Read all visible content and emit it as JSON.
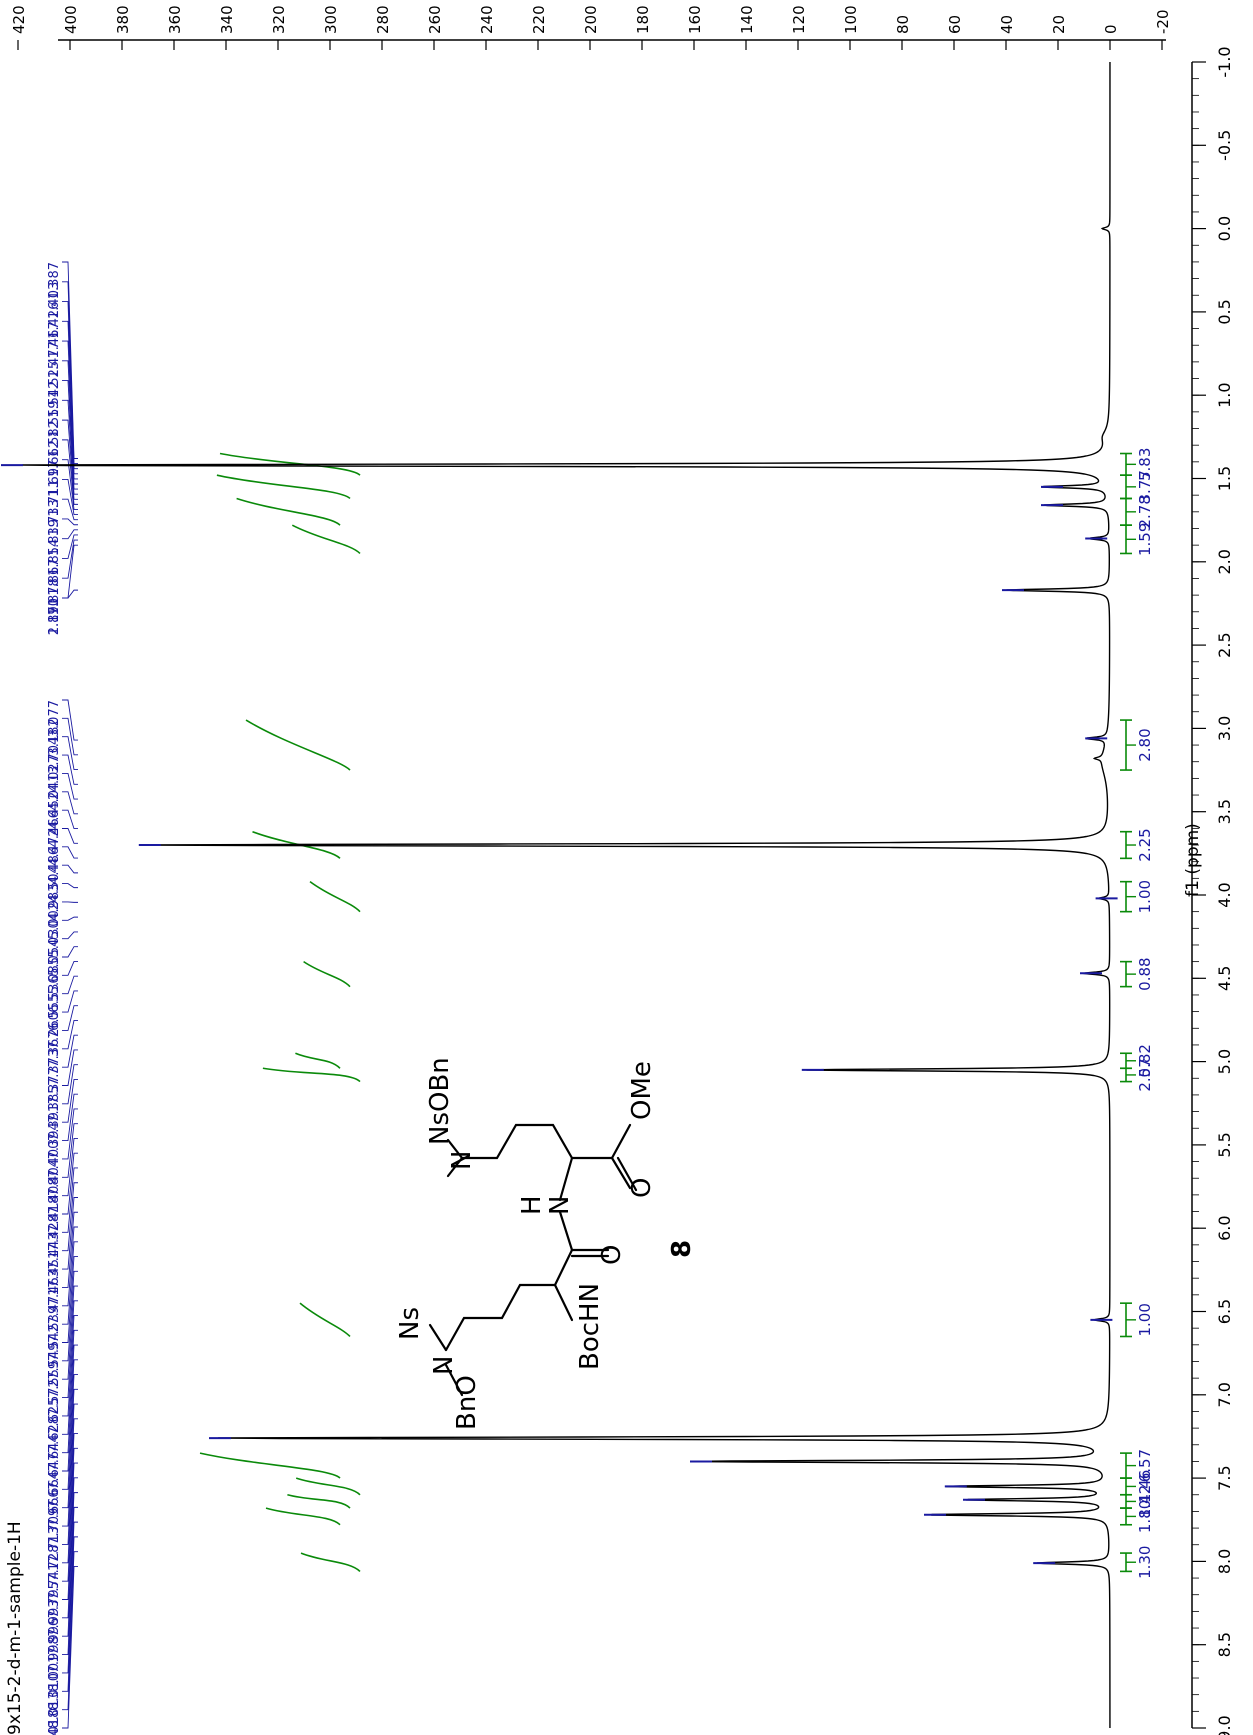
{
  "figure_label": "9x15-2-d-m-1-sample-1H",
  "compound_number": "8",
  "structure_labels": {
    "ns_top": "Ns",
    "n_top": "N",
    "obn": "OBn",
    "nh": "N",
    "h": "H",
    "o_amide": "O",
    "ome": "OMe",
    "o_ester": "O",
    "ns_left": "Ns",
    "n_left": "N",
    "bno": "BnO",
    "bochn": "BocHN"
  },
  "colors": {
    "spectrum": "#000000",
    "peak_labels": "#1a1aa0",
    "integrals": "#0a8a0a",
    "axis": "#000000"
  },
  "chart_data": {
    "type": "line",
    "orientation": "rotated-90",
    "title": "",
    "xlabel": "f1 (ppm)",
    "ylabel": "",
    "xlim": [
      -1.0,
      9.0
    ],
    "ylim": [
      -20,
      420
    ],
    "x_ticks": [
      "-1.0",
      "-0.5",
      "0.0",
      "0.5",
      "1.0",
      "1.5",
      "2.0",
      "2.5",
      "3.0",
      "3.5",
      "4.0",
      "4.5",
      "5.0",
      "5.5",
      "6.0",
      "6.5",
      "7.0",
      "7.5",
      "8.0",
      "8.5",
      "9.0"
    ],
    "y_ticks": [
      "-20",
      "0",
      "20",
      "40",
      "60",
      "80",
      "100",
      "120",
      "140",
      "160",
      "180",
      "200",
      "220",
      "240",
      "260",
      "280",
      "300",
      "320",
      "340",
      "360",
      "380",
      "400",
      "420"
    ],
    "peaks": [
      {
        "ppm": 0.0,
        "height": 3
      },
      {
        "ppm": 1.42,
        "height": 425
      },
      {
        "ppm": 1.55,
        "height": 25
      },
      {
        "ppm": 1.66,
        "height": 25
      },
      {
        "ppm": 1.86,
        "height": 8
      },
      {
        "ppm": 2.17,
        "height": 40
      },
      {
        "ppm": 3.06,
        "height": 8
      },
      {
        "ppm": 3.18,
        "height": 3
      },
      {
        "ppm": 3.7,
        "height": 372
      },
      {
        "ppm": 4.02,
        "height": 4
      },
      {
        "ppm": 4.47,
        "height": 10
      },
      {
        "ppm": 5.05,
        "height": 117
      },
      {
        "ppm": 6.55,
        "height": 6
      },
      {
        "ppm": 7.26,
        "height": 345
      },
      {
        "ppm": 7.4,
        "height": 160
      },
      {
        "ppm": 7.55,
        "height": 62
      },
      {
        "ppm": 7.63,
        "height": 55
      },
      {
        "ppm": 7.72,
        "height": 70
      },
      {
        "ppm": 8.01,
        "height": 28
      }
    ],
    "peak_labels": {
      "group1": [
        "1.387",
        "1.403",
        "1.426",
        "1.467",
        "1.477",
        "1.525",
        "1.542",
        "1.559",
        "1.582",
        "1.662",
        "1.697",
        "1.711",
        "1.733",
        "1.839",
        "1.854",
        "1.867",
        "1.878",
        "1.891"
      ],
      "group2": [
        "2.170"
      ],
      "group3": [
        "3.077",
        "3.182",
        "3.704",
        "4.027",
        "4.041",
        "4.452",
        "4.466",
        "4.472",
        "4.486",
        "4.504",
        "4.983",
        "5.002",
        "5.030",
        "5.054",
        "5.085",
        "6.536",
        "6.555",
        "7.260",
        "7.367",
        "7.373",
        "7.377",
        "7.385",
        "7.391",
        "7.394",
        "7.400",
        "7.404",
        "7.408",
        "7.418",
        "7.428",
        "7.443",
        "7.451",
        "7.463",
        "7.471",
        "7.539",
        "7.542",
        "7.549",
        "7.559",
        "7.572",
        "7.625",
        "7.628",
        "7.644",
        "7.647",
        "7.664",
        "7.666",
        "7.709",
        "7.713",
        "7.728",
        "7.741",
        "7.795",
        "7.993",
        "7.996",
        "7.998",
        "8.001",
        "8.010",
        "8.013",
        "8.018",
        "8.024"
      ]
    },
    "integrals": [
      {
        "from": 1.35,
        "to": 1.48,
        "value": "5.83"
      },
      {
        "from": 1.48,
        "to": 1.62,
        "value": "3.77"
      },
      {
        "from": 1.62,
        "to": 1.78,
        "value": "2.78"
      },
      {
        "from": 1.78,
        "to": 1.95,
        "value": "1.59"
      },
      {
        "from": 2.95,
        "to": 3.25,
        "value": "2.80"
      },
      {
        "from": 3.62,
        "to": 3.78,
        "value": "2.25"
      },
      {
        "from": 3.92,
        "to": 4.1,
        "value": "1.00"
      },
      {
        "from": 4.4,
        "to": 4.55,
        "value": "0.88"
      },
      {
        "from": 4.95,
        "to": 5.04,
        "value": "0.82"
      },
      {
        "from": 5.04,
        "to": 5.12,
        "value": "2.57"
      },
      {
        "from": 6.45,
        "to": 6.65,
        "value": "1.00"
      },
      {
        "from": 7.35,
        "to": 7.5,
        "value": "6.57"
      },
      {
        "from": 7.5,
        "to": 7.6,
        "value": "1.46"
      },
      {
        "from": 7.6,
        "to": 7.68,
        "value": "1.42"
      },
      {
        "from": 7.68,
        "to": 7.78,
        "value": "1.80"
      },
      {
        "from": 7.95,
        "to": 8.06,
        "value": "1.30"
      }
    ]
  }
}
